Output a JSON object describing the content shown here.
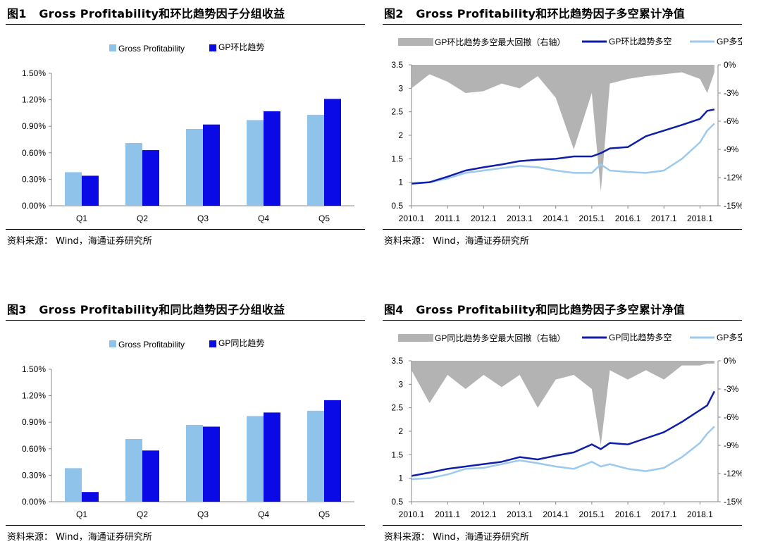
{
  "source_text": "资料来源： Wind，海通证券研究所",
  "colors": {
    "light_blue": "#8fc3ea",
    "dark_blue": "#0a0ae6",
    "line_dark": "#0f1ea8",
    "line_light": "#9cc9ee",
    "drawdown": "#b3b3b3"
  },
  "charts": [
    {
      "num": "图1",
      "title": "Gross Profitability和环比趋势因子分组收益",
      "chart_data": {
        "type": "bar",
        "categories": [
          "Q1",
          "Q2",
          "Q3",
          "Q4",
          "Q5"
        ],
        "series": [
          {
            "name": "Gross Profitability",
            "values": [
              0.38,
              0.71,
              0.87,
              0.97,
              1.03
            ]
          },
          {
            "name": "GP环比趋势",
            "values": [
              0.34,
              0.63,
              0.92,
              1.07,
              1.21
            ]
          }
        ],
        "y_ticks": [
          "0.00%",
          "0.30%",
          "0.60%",
          "0.90%",
          "1.20%",
          "1.50%"
        ],
        "ylim": [
          0,
          1.5
        ],
        "legend": "top"
      }
    },
    {
      "num": "图2",
      "title": "Gross Profitability和环比趋势因子多空累计净值",
      "chart_data": {
        "type": "line",
        "x_ticks": [
          "2010.1",
          "2011.1",
          "2012.1",
          "2013.1",
          "2014.1",
          "2015.1",
          "2016.1",
          "2017.1",
          "2018.1"
        ],
        "x": [
          2010.0,
          2010.5,
          2011.0,
          2011.5,
          2012.0,
          2012.5,
          2013.0,
          2013.5,
          2014.0,
          2014.5,
          2015.0,
          2015.25,
          2015.5,
          2016.0,
          2016.5,
          2017.0,
          2017.5,
          2018.0,
          2018.2,
          2018.4
        ],
        "y_left_ticks": [
          "0.5",
          "1",
          "1.5",
          "2",
          "2.5",
          "3",
          "3.5"
        ],
        "ylim_left": [
          0.5,
          3.5
        ],
        "y_right_ticks": [
          "-15%",
          "-12%",
          "-9%",
          "-6%",
          "-3%",
          "0%"
        ],
        "ylim_right": [
          -15,
          0
        ],
        "series": [
          {
            "name": "GP环比趋势多空",
            "axis": "left",
            "values": [
              0.97,
              1.0,
              1.12,
              1.25,
              1.32,
              1.38,
              1.45,
              1.48,
              1.5,
              1.55,
              1.55,
              1.62,
              1.72,
              1.75,
              1.98,
              2.1,
              2.22,
              2.35,
              2.52,
              2.55
            ]
          },
          {
            "name": "GP多空",
            "axis": "left",
            "values": [
              0.98,
              1.0,
              1.08,
              1.2,
              1.25,
              1.3,
              1.35,
              1.32,
              1.25,
              1.2,
              1.2,
              1.38,
              1.25,
              1.22,
              1.2,
              1.25,
              1.5,
              1.85,
              2.1,
              2.25
            ]
          },
          {
            "name": "GP环比趋势多空最大回撤（右轴）",
            "axis": "right",
            "type": "area",
            "values": [
              -2.5,
              -1.0,
              -1.8,
              -3.0,
              -2.8,
              -2.0,
              -2.5,
              -1.2,
              -3.5,
              -9.0,
              -3.0,
              -13.5,
              -2.0,
              -1.5,
              -1.2,
              -1.0,
              -0.8,
              -1.5,
              -3.0,
              -0.8
            ]
          }
        ],
        "legend": "top"
      }
    },
    {
      "num": "图3",
      "title": "Gross Profitability和同比趋势因子分组收益",
      "chart_data": {
        "type": "bar",
        "categories": [
          "Q1",
          "Q2",
          "Q3",
          "Q4",
          "Q5"
        ],
        "series": [
          {
            "name": "Gross Profitability",
            "values": [
              0.38,
              0.71,
              0.87,
              0.97,
              1.03
            ]
          },
          {
            "name": "GP同比趋势",
            "values": [
              0.11,
              0.58,
              0.85,
              1.01,
              1.15
            ]
          }
        ],
        "y_ticks": [
          "0.00%",
          "0.30%",
          "0.60%",
          "0.90%",
          "1.20%",
          "1.50%"
        ],
        "ylim": [
          0,
          1.5
        ],
        "legend": "top"
      }
    },
    {
      "num": "图4",
      "title": "Gross Profitability和同比趋势因子多空累计净值",
      "chart_data": {
        "type": "line",
        "x_ticks": [
          "2010.1",
          "2011.1",
          "2012.1",
          "2013.1",
          "2014.1",
          "2015.1",
          "2016.1",
          "2017.1",
          "2018.1"
        ],
        "x": [
          2010.0,
          2010.5,
          2011.0,
          2011.5,
          2012.0,
          2012.5,
          2013.0,
          2013.5,
          2014.0,
          2014.5,
          2015.0,
          2015.25,
          2015.5,
          2016.0,
          2016.5,
          2017.0,
          2017.5,
          2018.0,
          2018.2,
          2018.4
        ],
        "y_left_ticks": [
          "0.5",
          "1",
          "1.5",
          "2",
          "2.5",
          "3",
          "3.5"
        ],
        "ylim_left": [
          0.5,
          3.5
        ],
        "y_right_ticks": [
          "-15%",
          "-12%",
          "-9%",
          "-6%",
          "-3%",
          "0%"
        ],
        "ylim_right": [
          -15,
          0
        ],
        "series": [
          {
            "name": "GP同比趋势多空",
            "axis": "left",
            "values": [
              1.05,
              1.12,
              1.2,
              1.25,
              1.3,
              1.35,
              1.45,
              1.4,
              1.48,
              1.55,
              1.72,
              1.62,
              1.75,
              1.72,
              1.85,
              1.98,
              2.2,
              2.45,
              2.55,
              2.85
            ]
          },
          {
            "name": "GP多空",
            "axis": "left",
            "values": [
              0.98,
              1.0,
              1.08,
              1.2,
              1.22,
              1.3,
              1.38,
              1.32,
              1.25,
              1.2,
              1.35,
              1.25,
              1.3,
              1.2,
              1.15,
              1.22,
              1.45,
              1.75,
              1.95,
              2.1
            ]
          },
          {
            "name": "GP同比趋势多空最大回撤（右轴）",
            "axis": "right",
            "type": "area",
            "values": [
              -1.0,
              -4.5,
              -1.5,
              -3.0,
              -1.5,
              -2.8,
              -1.5,
              -5.0,
              -2.0,
              -1.5,
              -3.0,
              -9.0,
              -1.0,
              -2.0,
              -1.0,
              -2.0,
              -0.5,
              -0.5,
              -0.3,
              -0.3
            ]
          }
        ],
        "legend": "top"
      }
    }
  ]
}
